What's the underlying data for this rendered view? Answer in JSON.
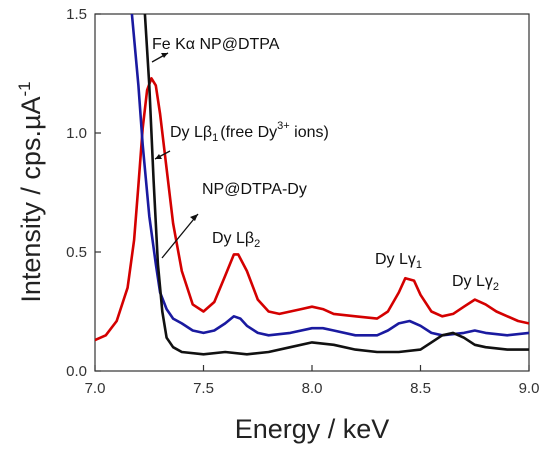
{
  "chart_data": {
    "type": "line",
    "xlabel": "Energy / keV",
    "ylabel_main": "Intensity / cps.µA",
    "ylabel_sup": "-1",
    "xlim": [
      7.0,
      9.0
    ],
    "ylim": [
      0.0,
      1.5
    ],
    "x_ticks": [
      "7.0",
      "7.5",
      "8.0",
      "8.5",
      "9.0"
    ],
    "y_ticks": [
      "0.0",
      "0.5",
      "1.0",
      "1.5"
    ],
    "grid": false,
    "series": [
      {
        "color": "#d40000",
        "points": [
          [
            7.0,
            0.13
          ],
          [
            7.05,
            0.15
          ],
          [
            7.1,
            0.21
          ],
          [
            7.15,
            0.35
          ],
          [
            7.18,
            0.55
          ],
          [
            7.2,
            0.78
          ],
          [
            7.22,
            1.02
          ],
          [
            7.24,
            1.18
          ],
          [
            7.26,
            1.23
          ],
          [
            7.28,
            1.2
          ],
          [
            7.3,
            1.08
          ],
          [
            7.33,
            0.85
          ],
          [
            7.36,
            0.62
          ],
          [
            7.4,
            0.42
          ],
          [
            7.45,
            0.28
          ],
          [
            7.5,
            0.25
          ],
          [
            7.55,
            0.29
          ],
          [
            7.6,
            0.4
          ],
          [
            7.64,
            0.49
          ],
          [
            7.66,
            0.49
          ],
          [
            7.7,
            0.42
          ],
          [
            7.75,
            0.3
          ],
          [
            7.8,
            0.25
          ],
          [
            7.85,
            0.24
          ],
          [
            7.9,
            0.25
          ],
          [
            7.95,
            0.26
          ],
          [
            8.0,
            0.27
          ],
          [
            8.05,
            0.26
          ],
          [
            8.1,
            0.24
          ],
          [
            8.2,
            0.23
          ],
          [
            8.3,
            0.22
          ],
          [
            8.35,
            0.25
          ],
          [
            8.4,
            0.33
          ],
          [
            8.43,
            0.39
          ],
          [
            8.47,
            0.38
          ],
          [
            8.5,
            0.32
          ],
          [
            8.55,
            0.25
          ],
          [
            8.6,
            0.23
          ],
          [
            8.65,
            0.24
          ],
          [
            8.7,
            0.27
          ],
          [
            8.75,
            0.3
          ],
          [
            8.8,
            0.28
          ],
          [
            8.85,
            0.25
          ],
          [
            8.9,
            0.23
          ],
          [
            8.95,
            0.21
          ],
          [
            9.0,
            0.2
          ]
        ]
      },
      {
        "color": "#1a1aa0",
        "points": [
          [
            7.17,
            1.5
          ],
          [
            7.2,
            1.2
          ],
          [
            7.22,
            0.95
          ],
          [
            7.25,
            0.65
          ],
          [
            7.28,
            0.45
          ],
          [
            7.3,
            0.33
          ],
          [
            7.33,
            0.26
          ],
          [
            7.36,
            0.22
          ],
          [
            7.4,
            0.2
          ],
          [
            7.45,
            0.17
          ],
          [
            7.5,
            0.16
          ],
          [
            7.55,
            0.17
          ],
          [
            7.6,
            0.2
          ],
          [
            7.64,
            0.23
          ],
          [
            7.67,
            0.22
          ],
          [
            7.7,
            0.19
          ],
          [
            7.75,
            0.16
          ],
          [
            7.8,
            0.15
          ],
          [
            7.9,
            0.16
          ],
          [
            8.0,
            0.18
          ],
          [
            8.05,
            0.18
          ],
          [
            8.1,
            0.17
          ],
          [
            8.2,
            0.15
          ],
          [
            8.3,
            0.15
          ],
          [
            8.35,
            0.17
          ],
          [
            8.4,
            0.2
          ],
          [
            8.45,
            0.21
          ],
          [
            8.5,
            0.19
          ],
          [
            8.55,
            0.16
          ],
          [
            8.6,
            0.15
          ],
          [
            8.7,
            0.16
          ],
          [
            8.75,
            0.17
          ],
          [
            8.8,
            0.16
          ],
          [
            8.9,
            0.15
          ],
          [
            9.0,
            0.16
          ]
        ]
      },
      {
        "color": "#111111",
        "points": [
          [
            7.23,
            1.5
          ],
          [
            7.25,
            1.2
          ],
          [
            7.27,
            0.8
          ],
          [
            7.29,
            0.45
          ],
          [
            7.31,
            0.25
          ],
          [
            7.33,
            0.14
          ],
          [
            7.36,
            0.1
          ],
          [
            7.4,
            0.08
          ],
          [
            7.5,
            0.07
          ],
          [
            7.6,
            0.08
          ],
          [
            7.7,
            0.07
          ],
          [
            7.8,
            0.08
          ],
          [
            7.9,
            0.1
          ],
          [
            8.0,
            0.12
          ],
          [
            8.1,
            0.11
          ],
          [
            8.2,
            0.09
          ],
          [
            8.3,
            0.08
          ],
          [
            8.4,
            0.08
          ],
          [
            8.5,
            0.09
          ],
          [
            8.55,
            0.12
          ],
          [
            8.6,
            0.15
          ],
          [
            8.65,
            0.16
          ],
          [
            8.7,
            0.14
          ],
          [
            8.75,
            0.11
          ],
          [
            8.8,
            0.1
          ],
          [
            8.9,
            0.09
          ],
          [
            9.0,
            0.09
          ]
        ]
      }
    ],
    "annotations": [
      {
        "main": "Fe Kα NP@DTPA",
        "sub": "",
        "tail": "",
        "sup": "",
        "suffix": ""
      },
      {
        "main": "Dy Lβ",
        "sub": "1",
        "tail": "(free Dy",
        "sup": "3+",
        "suffix": " ions)"
      },
      {
        "main": "NP@DTPA-Dy",
        "sub": "",
        "tail": "",
        "sup": "",
        "suffix": ""
      },
      {
        "main": "Dy Lβ",
        "sub": "2",
        "tail": "",
        "sup": "",
        "suffix": ""
      },
      {
        "main": "Dy Lγ",
        "sub": "1",
        "tail": "",
        "sup": "",
        "suffix": ""
      },
      {
        "main": "Dy Lγ",
        "sub": "2",
        "tail": "",
        "sup": "",
        "suffix": ""
      }
    ]
  }
}
